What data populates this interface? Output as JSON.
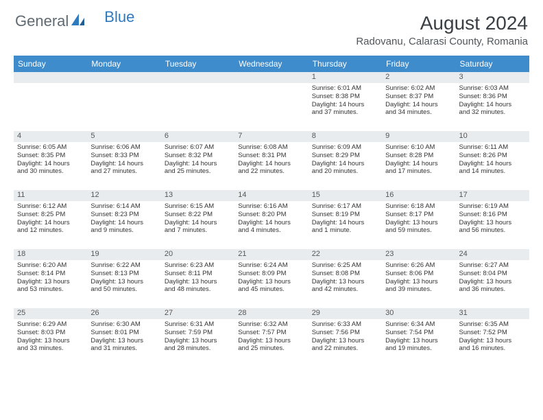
{
  "logo": {
    "text1": "General",
    "text2": "Blue",
    "text1_color": "#5f6a72",
    "text2_color": "#2f7abf"
  },
  "title": "August 2024",
  "location": "Radovanu, Calarasi County, Romania",
  "colors": {
    "header_bg": "#3f8ccc",
    "header_text": "#ffffff",
    "daynum_bg": "#e9ecef",
    "daynum_text": "#555555",
    "body_text": "#333333",
    "page_bg": "#ffffff"
  },
  "day_headers": [
    "Sunday",
    "Monday",
    "Tuesday",
    "Wednesday",
    "Thursday",
    "Friday",
    "Saturday"
  ],
  "weeks": [
    [
      null,
      null,
      null,
      null,
      {
        "n": "1",
        "sr": "Sunrise: 6:01 AM",
        "ss": "Sunset: 8:38 PM",
        "dl1": "Daylight: 14 hours",
        "dl2": "and 37 minutes."
      },
      {
        "n": "2",
        "sr": "Sunrise: 6:02 AM",
        "ss": "Sunset: 8:37 PM",
        "dl1": "Daylight: 14 hours",
        "dl2": "and 34 minutes."
      },
      {
        "n": "3",
        "sr": "Sunrise: 6:03 AM",
        "ss": "Sunset: 8:36 PM",
        "dl1": "Daylight: 14 hours",
        "dl2": "and 32 minutes."
      }
    ],
    [
      {
        "n": "4",
        "sr": "Sunrise: 6:05 AM",
        "ss": "Sunset: 8:35 PM",
        "dl1": "Daylight: 14 hours",
        "dl2": "and 30 minutes."
      },
      {
        "n": "5",
        "sr": "Sunrise: 6:06 AM",
        "ss": "Sunset: 8:33 PM",
        "dl1": "Daylight: 14 hours",
        "dl2": "and 27 minutes."
      },
      {
        "n": "6",
        "sr": "Sunrise: 6:07 AM",
        "ss": "Sunset: 8:32 PM",
        "dl1": "Daylight: 14 hours",
        "dl2": "and 25 minutes."
      },
      {
        "n": "7",
        "sr": "Sunrise: 6:08 AM",
        "ss": "Sunset: 8:31 PM",
        "dl1": "Daylight: 14 hours",
        "dl2": "and 22 minutes."
      },
      {
        "n": "8",
        "sr": "Sunrise: 6:09 AM",
        "ss": "Sunset: 8:29 PM",
        "dl1": "Daylight: 14 hours",
        "dl2": "and 20 minutes."
      },
      {
        "n": "9",
        "sr": "Sunrise: 6:10 AM",
        "ss": "Sunset: 8:28 PM",
        "dl1": "Daylight: 14 hours",
        "dl2": "and 17 minutes."
      },
      {
        "n": "10",
        "sr": "Sunrise: 6:11 AM",
        "ss": "Sunset: 8:26 PM",
        "dl1": "Daylight: 14 hours",
        "dl2": "and 14 minutes."
      }
    ],
    [
      {
        "n": "11",
        "sr": "Sunrise: 6:12 AM",
        "ss": "Sunset: 8:25 PM",
        "dl1": "Daylight: 14 hours",
        "dl2": "and 12 minutes."
      },
      {
        "n": "12",
        "sr": "Sunrise: 6:14 AM",
        "ss": "Sunset: 8:23 PM",
        "dl1": "Daylight: 14 hours",
        "dl2": "and 9 minutes."
      },
      {
        "n": "13",
        "sr": "Sunrise: 6:15 AM",
        "ss": "Sunset: 8:22 PM",
        "dl1": "Daylight: 14 hours",
        "dl2": "and 7 minutes."
      },
      {
        "n": "14",
        "sr": "Sunrise: 6:16 AM",
        "ss": "Sunset: 8:20 PM",
        "dl1": "Daylight: 14 hours",
        "dl2": "and 4 minutes."
      },
      {
        "n": "15",
        "sr": "Sunrise: 6:17 AM",
        "ss": "Sunset: 8:19 PM",
        "dl1": "Daylight: 14 hours",
        "dl2": "and 1 minute."
      },
      {
        "n": "16",
        "sr": "Sunrise: 6:18 AM",
        "ss": "Sunset: 8:17 PM",
        "dl1": "Daylight: 13 hours",
        "dl2": "and 59 minutes."
      },
      {
        "n": "17",
        "sr": "Sunrise: 6:19 AM",
        "ss": "Sunset: 8:16 PM",
        "dl1": "Daylight: 13 hours",
        "dl2": "and 56 minutes."
      }
    ],
    [
      {
        "n": "18",
        "sr": "Sunrise: 6:20 AM",
        "ss": "Sunset: 8:14 PM",
        "dl1": "Daylight: 13 hours",
        "dl2": "and 53 minutes."
      },
      {
        "n": "19",
        "sr": "Sunrise: 6:22 AM",
        "ss": "Sunset: 8:13 PM",
        "dl1": "Daylight: 13 hours",
        "dl2": "and 50 minutes."
      },
      {
        "n": "20",
        "sr": "Sunrise: 6:23 AM",
        "ss": "Sunset: 8:11 PM",
        "dl1": "Daylight: 13 hours",
        "dl2": "and 48 minutes."
      },
      {
        "n": "21",
        "sr": "Sunrise: 6:24 AM",
        "ss": "Sunset: 8:09 PM",
        "dl1": "Daylight: 13 hours",
        "dl2": "and 45 minutes."
      },
      {
        "n": "22",
        "sr": "Sunrise: 6:25 AM",
        "ss": "Sunset: 8:08 PM",
        "dl1": "Daylight: 13 hours",
        "dl2": "and 42 minutes."
      },
      {
        "n": "23",
        "sr": "Sunrise: 6:26 AM",
        "ss": "Sunset: 8:06 PM",
        "dl1": "Daylight: 13 hours",
        "dl2": "and 39 minutes."
      },
      {
        "n": "24",
        "sr": "Sunrise: 6:27 AM",
        "ss": "Sunset: 8:04 PM",
        "dl1": "Daylight: 13 hours",
        "dl2": "and 36 minutes."
      }
    ],
    [
      {
        "n": "25",
        "sr": "Sunrise: 6:29 AM",
        "ss": "Sunset: 8:03 PM",
        "dl1": "Daylight: 13 hours",
        "dl2": "and 33 minutes."
      },
      {
        "n": "26",
        "sr": "Sunrise: 6:30 AM",
        "ss": "Sunset: 8:01 PM",
        "dl1": "Daylight: 13 hours",
        "dl2": "and 31 minutes."
      },
      {
        "n": "27",
        "sr": "Sunrise: 6:31 AM",
        "ss": "Sunset: 7:59 PM",
        "dl1": "Daylight: 13 hours",
        "dl2": "and 28 minutes."
      },
      {
        "n": "28",
        "sr": "Sunrise: 6:32 AM",
        "ss": "Sunset: 7:57 PM",
        "dl1": "Daylight: 13 hours",
        "dl2": "and 25 minutes."
      },
      {
        "n": "29",
        "sr": "Sunrise: 6:33 AM",
        "ss": "Sunset: 7:56 PM",
        "dl1": "Daylight: 13 hours",
        "dl2": "and 22 minutes."
      },
      {
        "n": "30",
        "sr": "Sunrise: 6:34 AM",
        "ss": "Sunset: 7:54 PM",
        "dl1": "Daylight: 13 hours",
        "dl2": "and 19 minutes."
      },
      {
        "n": "31",
        "sr": "Sunrise: 6:35 AM",
        "ss": "Sunset: 7:52 PM",
        "dl1": "Daylight: 13 hours",
        "dl2": "and 16 minutes."
      }
    ]
  ]
}
